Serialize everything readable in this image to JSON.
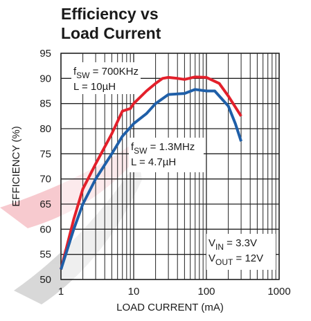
{
  "chart_data": {
    "type": "line",
    "title": [
      "Efficiency vs",
      "Load Current"
    ],
    "x_label": "LOAD CURRENT (mA)",
    "y_label": "EFFICIENCY (%)",
    "xlim": [
      1,
      1000
    ],
    "ylim": [
      50,
      95
    ],
    "xticks": [
      1,
      10,
      100,
      1000
    ],
    "x_minor_grid": [
      2,
      3,
      4,
      5,
      6,
      7,
      8,
      9,
      20,
      30,
      40,
      50,
      60,
      70,
      80,
      90,
      200,
      300,
      400,
      500,
      600,
      700,
      800,
      900
    ],
    "yticks": [
      50,
      55,
      60,
      65,
      70,
      75,
      80,
      85,
      90,
      95
    ],
    "x_scale": "log",
    "grid": true,
    "series": [
      {
        "color": "#e3202b",
        "x": [
          1,
          1.5,
          2,
          3,
          5,
          7,
          9,
          10,
          15,
          20,
          25,
          30,
          40,
          50,
          70,
          100,
          150,
          200,
          300
        ],
        "values": [
          52,
          62,
          68,
          73,
          79,
          83.5,
          84,
          85,
          87.5,
          89,
          90,
          90.2,
          90,
          89.8,
          90.3,
          90.2,
          89,
          86.5,
          82.5
        ]
      },
      {
        "color": "#1f5fa8",
        "x": [
          1,
          1.5,
          2,
          3,
          5,
          7,
          10,
          15,
          20,
          30,
          50,
          70,
          100,
          130,
          200,
          250,
          300
        ],
        "values": [
          52,
          60,
          65,
          70,
          75,
          78.5,
          81,
          83,
          85,
          86.8,
          87,
          87.8,
          87.5,
          87.5,
          84.5,
          81,
          77.5
        ]
      }
    ],
    "annotations": [
      {
        "lines": [
          [
            "f",
            "SW",
            " = 700KHz"
          ],
          [
            "L = 10µH"
          ]
        ]
      },
      {
        "lines": [
          [
            "f",
            "SW",
            " = 1.3MHz"
          ],
          [
            "L = 4.7µH"
          ]
        ]
      },
      {
        "lines": [
          [
            "V",
            "IN",
            " = 3.3V"
          ],
          [
            "V",
            "OUT",
            " = 12V"
          ]
        ]
      }
    ]
  }
}
